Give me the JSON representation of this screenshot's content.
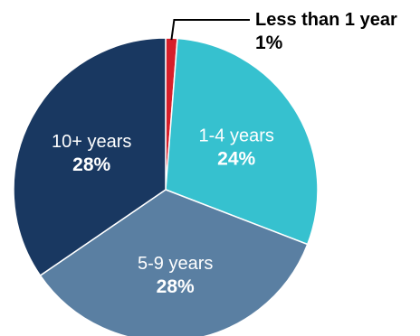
{
  "chart_data": {
    "type": "pie",
    "title": "",
    "slices": [
      {
        "label": "Less than 1 year",
        "value_label": "1%",
        "value": 1,
        "color": "#d71f2a"
      },
      {
        "label": "1-4 years",
        "value_label": "24%",
        "value": 24,
        "color": "#36c1cf"
      },
      {
        "label": "5-9 years",
        "value_label": "28%",
        "value": 28,
        "color": "#5a7fa2"
      },
      {
        "label": "10+ years",
        "value_label": "28%",
        "value": 28,
        "color": "#193861"
      }
    ],
    "legend": "none"
  }
}
